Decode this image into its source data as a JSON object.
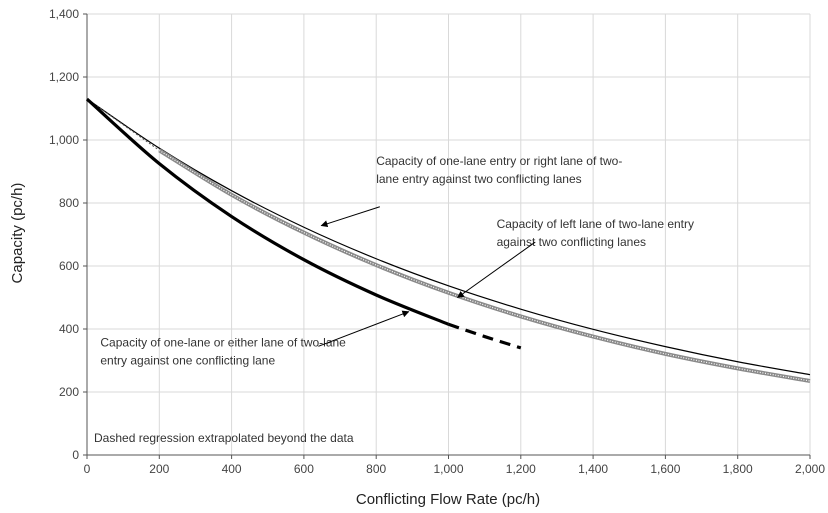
{
  "chart_data": {
    "type": "line",
    "title": "",
    "xlabel": "Conflicting Flow Rate (pc/h)",
    "ylabel": "Capacity (pc/h)",
    "xlim": [
      0,
      2000
    ],
    "ylim": [
      0,
      1400
    ],
    "x_ticks": [
      0,
      200,
      400,
      600,
      800,
      1000,
      1200,
      1400,
      1600,
      1800,
      2000
    ],
    "y_ticks": [
      0,
      200,
      400,
      600,
      800,
      1000,
      1200,
      1400
    ],
    "x_tick_labels": [
      "0",
      "200",
      "400",
      "600",
      "800",
      "1,000",
      "1,200",
      "1,400",
      "1,600",
      "1,800",
      "2,000"
    ],
    "y_tick_labels": [
      "0",
      "200",
      "400",
      "600",
      "800",
      "1,000",
      "1,200",
      "1,400"
    ],
    "grid": true,
    "series": [
      {
        "style": "thin-solid-black",
        "x": [
          0,
          200,
          400,
          600,
          800,
          1000,
          1200,
          1400,
          1600,
          1800,
          2000
        ],
        "y": [
          1130,
          974,
          839,
          723,
          623,
          537,
          463,
          399,
          344,
          296,
          255
        ]
      },
      {
        "style": "hatched-gray",
        "x": [
          200,
          400,
          600,
          800,
          1000,
          1200,
          1400,
          1600,
          1800,
          2000
        ],
        "y": [
          967,
          826,
          706,
          603,
          515,
          440,
          376,
          321,
          275,
          235
        ],
        "extension_x": [
          0,
          200
        ],
        "extension_y": [
          1130,
          967
        ]
      },
      {
        "style": "thick-solid-black",
        "x": [
          0,
          200,
          400,
          600,
          800,
          1000
        ],
        "y": [
          1130,
          925,
          757,
          620,
          508,
          415
        ],
        "extension_x": [
          1000,
          1100,
          1200
        ],
        "extension_y": [
          415,
          376,
          340
        ]
      }
    ],
    "annotations": [
      {
        "lines": [
          "Capacity of one-lane entry or right lane of two-",
          "lane entry against two conflicting lanes"
        ],
        "text_x": 800,
        "text_y": 920,
        "arrow_from": [
          810,
          788
        ],
        "arrow_to": [
          648,
          728
        ]
      },
      {
        "lines": [
          "Capacity of left lane of two-lane entry",
          "against two conflicting lanes"
        ],
        "text_x": 1133,
        "text_y": 720,
        "arrow_from": [
          1240,
          676
        ],
        "arrow_to": [
          1025,
          500
        ]
      },
      {
        "lines": [
          "Capacity of one-lane or either lane of two-lane",
          "entry against one conflicting lane"
        ],
        "text_x": 37,
        "text_y": 345,
        "arrow_from": [
          640,
          345
        ],
        "arrow_to": [
          890,
          455
        ]
      }
    ],
    "note": "Dashed regression extrapolated beyond the data",
    "colors": {
      "thin": "#000000",
      "thick": "#000000",
      "hatched": "#8a8a8a",
      "grid": "#d9d9d9"
    }
  }
}
